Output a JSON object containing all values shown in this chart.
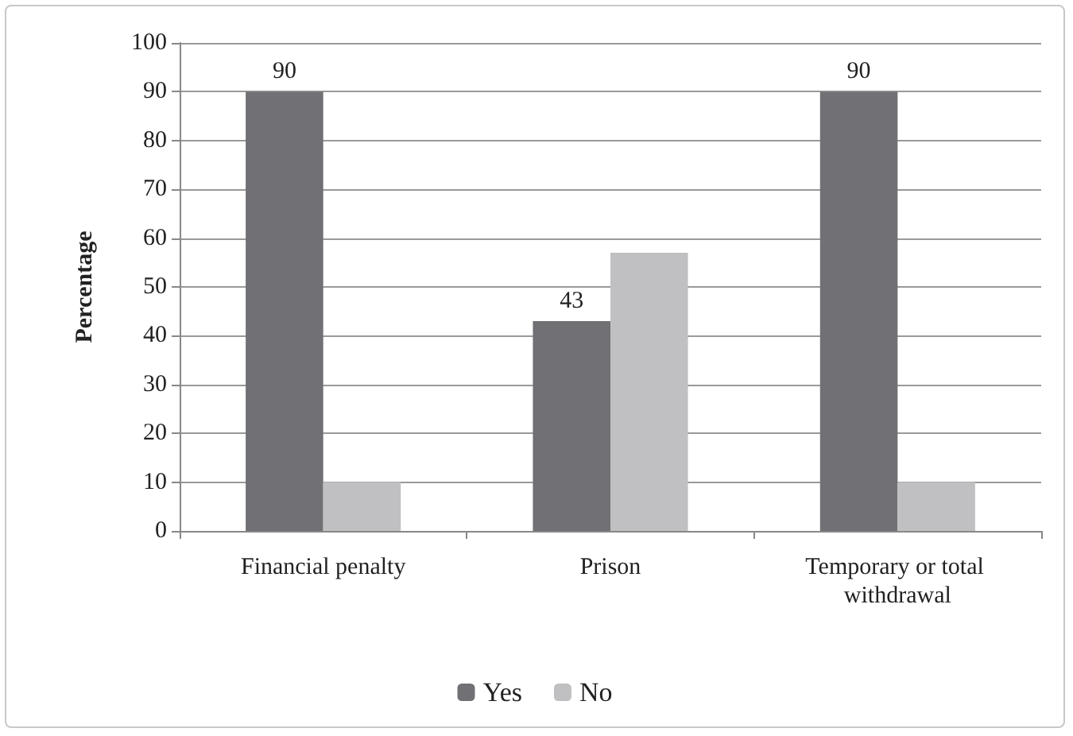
{
  "chart_data": {
    "type": "bar",
    "ylabel": "Percentage",
    "categories": [
      "Financial penalty",
      "Prison",
      "Temporary or total withdrawal"
    ],
    "series": [
      {
        "name": "Yes",
        "color": "#717074",
        "values": [
          90,
          43,
          90
        ],
        "value_labels": [
          "90",
          "43",
          "90"
        ]
      },
      {
        "name": "No",
        "color": "#c0c0c2",
        "values": [
          10,
          57,
          10
        ]
      }
    ],
    "ylim": [
      0,
      100
    ],
    "yticks": [
      0,
      10,
      20,
      30,
      40,
      50,
      60,
      70,
      80,
      90,
      100
    ],
    "grid": "y",
    "legend": "bottom"
  }
}
